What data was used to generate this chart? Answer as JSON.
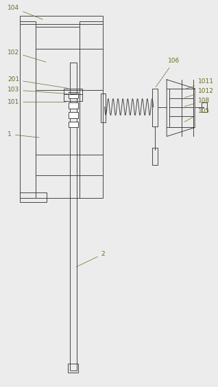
{
  "bg_color": "#ececec",
  "line_color": "#444444",
  "label_color": "#6b6b2a",
  "line_width": 0.7,
  "annotation_lw": 0.5,
  "font_size": 6.5
}
